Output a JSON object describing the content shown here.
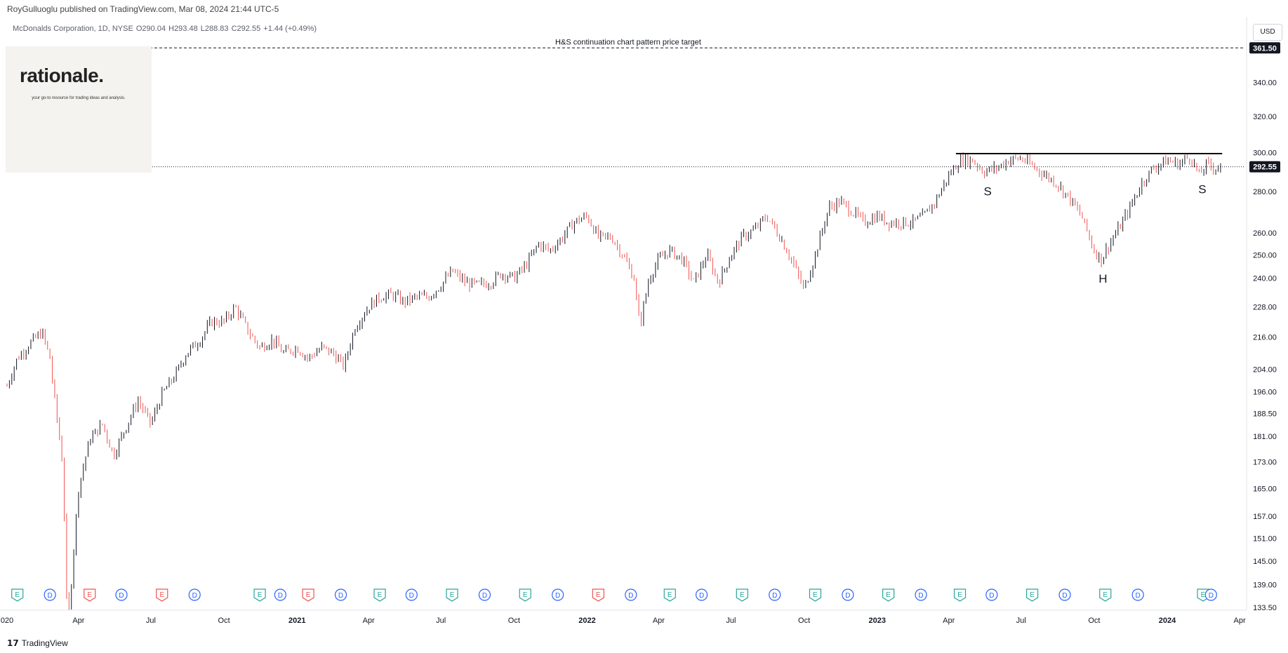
{
  "publisher_line": "RoyGulluoglu published on TradingView.com, Mar 08, 2024 21:44 UTC-5",
  "legend": {
    "symbol": "McDonalds Corporation, 1D, NYSE",
    "open": "O290.04",
    "high": "H293.48",
    "low": "L288.83",
    "close": "C292.55",
    "change": "+1.44 (+0.49%)"
  },
  "currency": "USD",
  "logo": {
    "name": "rationale.",
    "tagline": "your go-to resource for trading ideas and analysis."
  },
  "footer": {
    "brand": "TradingView"
  },
  "colors": {
    "up": "#131722",
    "down": "#ef5350",
    "earnings": "#26a69a",
    "earnings_miss": "#ef5350",
    "dividend": "#2962ff",
    "neckline": "#000000"
  },
  "chart_data": {
    "type": "candlestick",
    "price_scale": "log",
    "ylim": [
      133.5,
      368
    ],
    "y_ticks": [
      "361.50",
      "340.00",
      "320.00",
      "300.00",
      "292.55",
      "280.00",
      "260.00",
      "250.00",
      "240.00",
      "228.00",
      "216.00",
      "204.00",
      "196.00",
      "188.50",
      "181.00",
      "173.00",
      "165.00",
      "157.00",
      "151.00",
      "145.00",
      "139.00",
      "133.50"
    ],
    "x_ticks": [
      "020",
      "Apr",
      "Jul",
      "Oct",
      "2021",
      "Apr",
      "Jul",
      "Oct",
      "2022",
      "Apr",
      "Jul",
      "Oct",
      "2023",
      "Apr",
      "Jul",
      "Oct",
      "2024",
      "Apr"
    ],
    "last_price": 292.55,
    "target_price": 361.5,
    "target_label": "H&S continuation chart pattern price target",
    "neckline": 299.5,
    "pattern_labels": [
      "S",
      "H",
      "S"
    ],
    "events": [
      {
        "type": "E",
        "date": "2020-01"
      },
      {
        "type": "D",
        "date": "2020-02"
      },
      {
        "type": "E",
        "date": "2020-04"
      },
      {
        "type": "D",
        "date": "2020-05"
      },
      {
        "type": "E",
        "date": "2020-07"
      },
      {
        "type": "D",
        "date": "2020-08"
      },
      {
        "type": "E",
        "date": "2020-11"
      },
      {
        "type": "D",
        "date": "2020-11"
      },
      {
        "type": "E",
        "date": "2021-01"
      },
      {
        "type": "D",
        "date": "2021-02"
      },
      {
        "type": "E",
        "date": "2021-04"
      },
      {
        "type": "D",
        "date": "2021-05"
      },
      {
        "type": "E",
        "date": "2021-07"
      },
      {
        "type": "D",
        "date": "2021-08"
      },
      {
        "type": "E",
        "date": "2021-10"
      },
      {
        "type": "D",
        "date": "2021-11"
      },
      {
        "type": "E",
        "date": "2022-01"
      },
      {
        "type": "D",
        "date": "2022-02"
      },
      {
        "type": "E",
        "date": "2022-04"
      },
      {
        "type": "D",
        "date": "2022-05"
      },
      {
        "type": "E",
        "date": "2022-07"
      },
      {
        "type": "D",
        "date": "2022-08"
      },
      {
        "type": "E",
        "date": "2022-10"
      },
      {
        "type": "D",
        "date": "2022-11"
      },
      {
        "type": "E",
        "date": "2023-01"
      },
      {
        "type": "D",
        "date": "2023-02"
      },
      {
        "type": "E",
        "date": "2023-04"
      },
      {
        "type": "D",
        "date": "2023-05"
      },
      {
        "type": "E",
        "date": "2023-07"
      },
      {
        "type": "D",
        "date": "2023-08"
      },
      {
        "type": "E",
        "date": "2023-10"
      },
      {
        "type": "D",
        "date": "2023-11"
      },
      {
        "type": "E",
        "date": "2024-02"
      },
      {
        "type": "D",
        "date": "2024-02"
      }
    ],
    "series": [
      {
        "date": "2020-01-02",
        "close": 198
      },
      {
        "date": "2020-01-15",
        "close": 208
      },
      {
        "date": "2020-02-01",
        "close": 214
      },
      {
        "date": "2020-02-15",
        "close": 218
      },
      {
        "date": "2020-02-25",
        "close": 208
      },
      {
        "date": "2020-03-01",
        "close": 195
      },
      {
        "date": "2020-03-12",
        "close": 172
      },
      {
        "date": "2020-03-18",
        "close": 128
      },
      {
        "date": "2020-03-23",
        "close": 140
      },
      {
        "date": "2020-04-01",
        "close": 165
      },
      {
        "date": "2020-04-15",
        "close": 180
      },
      {
        "date": "2020-05-01",
        "close": 185
      },
      {
        "date": "2020-05-15",
        "close": 175
      },
      {
        "date": "2020-06-01",
        "close": 185
      },
      {
        "date": "2020-06-15",
        "close": 193
      },
      {
        "date": "2020-07-01",
        "close": 185
      },
      {
        "date": "2020-07-15",
        "close": 195
      },
      {
        "date": "2020-08-01",
        "close": 202
      },
      {
        "date": "2020-08-15",
        "close": 210
      },
      {
        "date": "2020-09-01",
        "close": 215
      },
      {
        "date": "2020-09-15",
        "close": 222
      },
      {
        "date": "2020-10-01",
        "close": 222
      },
      {
        "date": "2020-10-15",
        "close": 228
      },
      {
        "date": "2020-11-01",
        "close": 218
      },
      {
        "date": "2020-11-15",
        "close": 212
      },
      {
        "date": "2020-12-01",
        "close": 215
      },
      {
        "date": "2020-12-15",
        "close": 210
      },
      {
        "date": "2021-01-01",
        "close": 212
      },
      {
        "date": "2021-01-15",
        "close": 208
      },
      {
        "date": "2021-02-01",
        "close": 212
      },
      {
        "date": "2021-02-15",
        "close": 210
      },
      {
        "date": "2021-03-01",
        "close": 205
      },
      {
        "date": "2021-03-15",
        "close": 220
      },
      {
        "date": "2021-04-01",
        "close": 228
      },
      {
        "date": "2021-04-15",
        "close": 232
      },
      {
        "date": "2021-05-01",
        "close": 233
      },
      {
        "date": "2021-05-15",
        "close": 230
      },
      {
        "date": "2021-06-01",
        "close": 232
      },
      {
        "date": "2021-06-15",
        "close": 232
      },
      {
        "date": "2021-07-01",
        "close": 237
      },
      {
        "date": "2021-07-15",
        "close": 243
      },
      {
        "date": "2021-08-01",
        "close": 238
      },
      {
        "date": "2021-08-15",
        "close": 237
      },
      {
        "date": "2021-09-01",
        "close": 238
      },
      {
        "date": "2021-09-15",
        "close": 242
      },
      {
        "date": "2021-10-01",
        "close": 240
      },
      {
        "date": "2021-10-15",
        "close": 245
      },
      {
        "date": "2021-11-01",
        "close": 255
      },
      {
        "date": "2021-11-15",
        "close": 252
      },
      {
        "date": "2021-12-01",
        "close": 258
      },
      {
        "date": "2021-12-15",
        "close": 265
      },
      {
        "date": "2022-01-01",
        "close": 268
      },
      {
        "date": "2022-01-15",
        "close": 258
      },
      {
        "date": "2022-02-01",
        "close": 258
      },
      {
        "date": "2022-02-15",
        "close": 250
      },
      {
        "date": "2022-03-01",
        "close": 240
      },
      {
        "date": "2022-03-08",
        "close": 220
      },
      {
        "date": "2022-03-20",
        "close": 240
      },
      {
        "date": "2022-04-01",
        "close": 248
      },
      {
        "date": "2022-04-15",
        "close": 252
      },
      {
        "date": "2022-05-01",
        "close": 248
      },
      {
        "date": "2022-05-15",
        "close": 238
      },
      {
        "date": "2022-06-01",
        "close": 250
      },
      {
        "date": "2022-06-15",
        "close": 238
      },
      {
        "date": "2022-07-01",
        "close": 250
      },
      {
        "date": "2022-07-15",
        "close": 258
      },
      {
        "date": "2022-08-01",
        "close": 262
      },
      {
        "date": "2022-08-15",
        "close": 268
      },
      {
        "date": "2022-09-01",
        "close": 258
      },
      {
        "date": "2022-09-15",
        "close": 248
      },
      {
        "date": "2022-10-01",
        "close": 235
      },
      {
        "date": "2022-10-15",
        "close": 250
      },
      {
        "date": "2022-11-01",
        "close": 272
      },
      {
        "date": "2022-11-15",
        "close": 275
      },
      {
        "date": "2022-12-01",
        "close": 270
      },
      {
        "date": "2022-12-15",
        "close": 265
      },
      {
        "date": "2023-01-01",
        "close": 268
      },
      {
        "date": "2023-01-15",
        "close": 265
      },
      {
        "date": "2023-02-01",
        "close": 265
      },
      {
        "date": "2023-02-15",
        "close": 265
      },
      {
        "date": "2023-03-01",
        "close": 268
      },
      {
        "date": "2023-03-15",
        "close": 275
      },
      {
        "date": "2023-04-01",
        "close": 288
      },
      {
        "date": "2023-04-15",
        "close": 296
      },
      {
        "date": "2023-05-01",
        "close": 296
      },
      {
        "date": "2023-05-15",
        "close": 290
      },
      {
        "date": "2023-06-01",
        "close": 292
      },
      {
        "date": "2023-06-15",
        "close": 296
      },
      {
        "date": "2023-07-01",
        "close": 297
      },
      {
        "date": "2023-07-15",
        "close": 293
      },
      {
        "date": "2023-08-01",
        "close": 288
      },
      {
        "date": "2023-08-15",
        "close": 284
      },
      {
        "date": "2023-09-01",
        "close": 276
      },
      {
        "date": "2023-09-15",
        "close": 268
      },
      {
        "date": "2023-10-01",
        "close": 252
      },
      {
        "date": "2023-10-10",
        "close": 248
      },
      {
        "date": "2023-10-20",
        "close": 255
      },
      {
        "date": "2023-11-01",
        "close": 262
      },
      {
        "date": "2023-11-15",
        "close": 272
      },
      {
        "date": "2023-12-01",
        "close": 285
      },
      {
        "date": "2023-12-15",
        "close": 292
      },
      {
        "date": "2024-01-01",
        "close": 296
      },
      {
        "date": "2024-01-15",
        "close": 294
      },
      {
        "date": "2024-01-30",
        "close": 298
      },
      {
        "date": "2024-02-10",
        "close": 288
      },
      {
        "date": "2024-02-20",
        "close": 294
      },
      {
        "date": "2024-03-01",
        "close": 292
      },
      {
        "date": "2024-03-08",
        "close": 292.55
      }
    ]
  }
}
